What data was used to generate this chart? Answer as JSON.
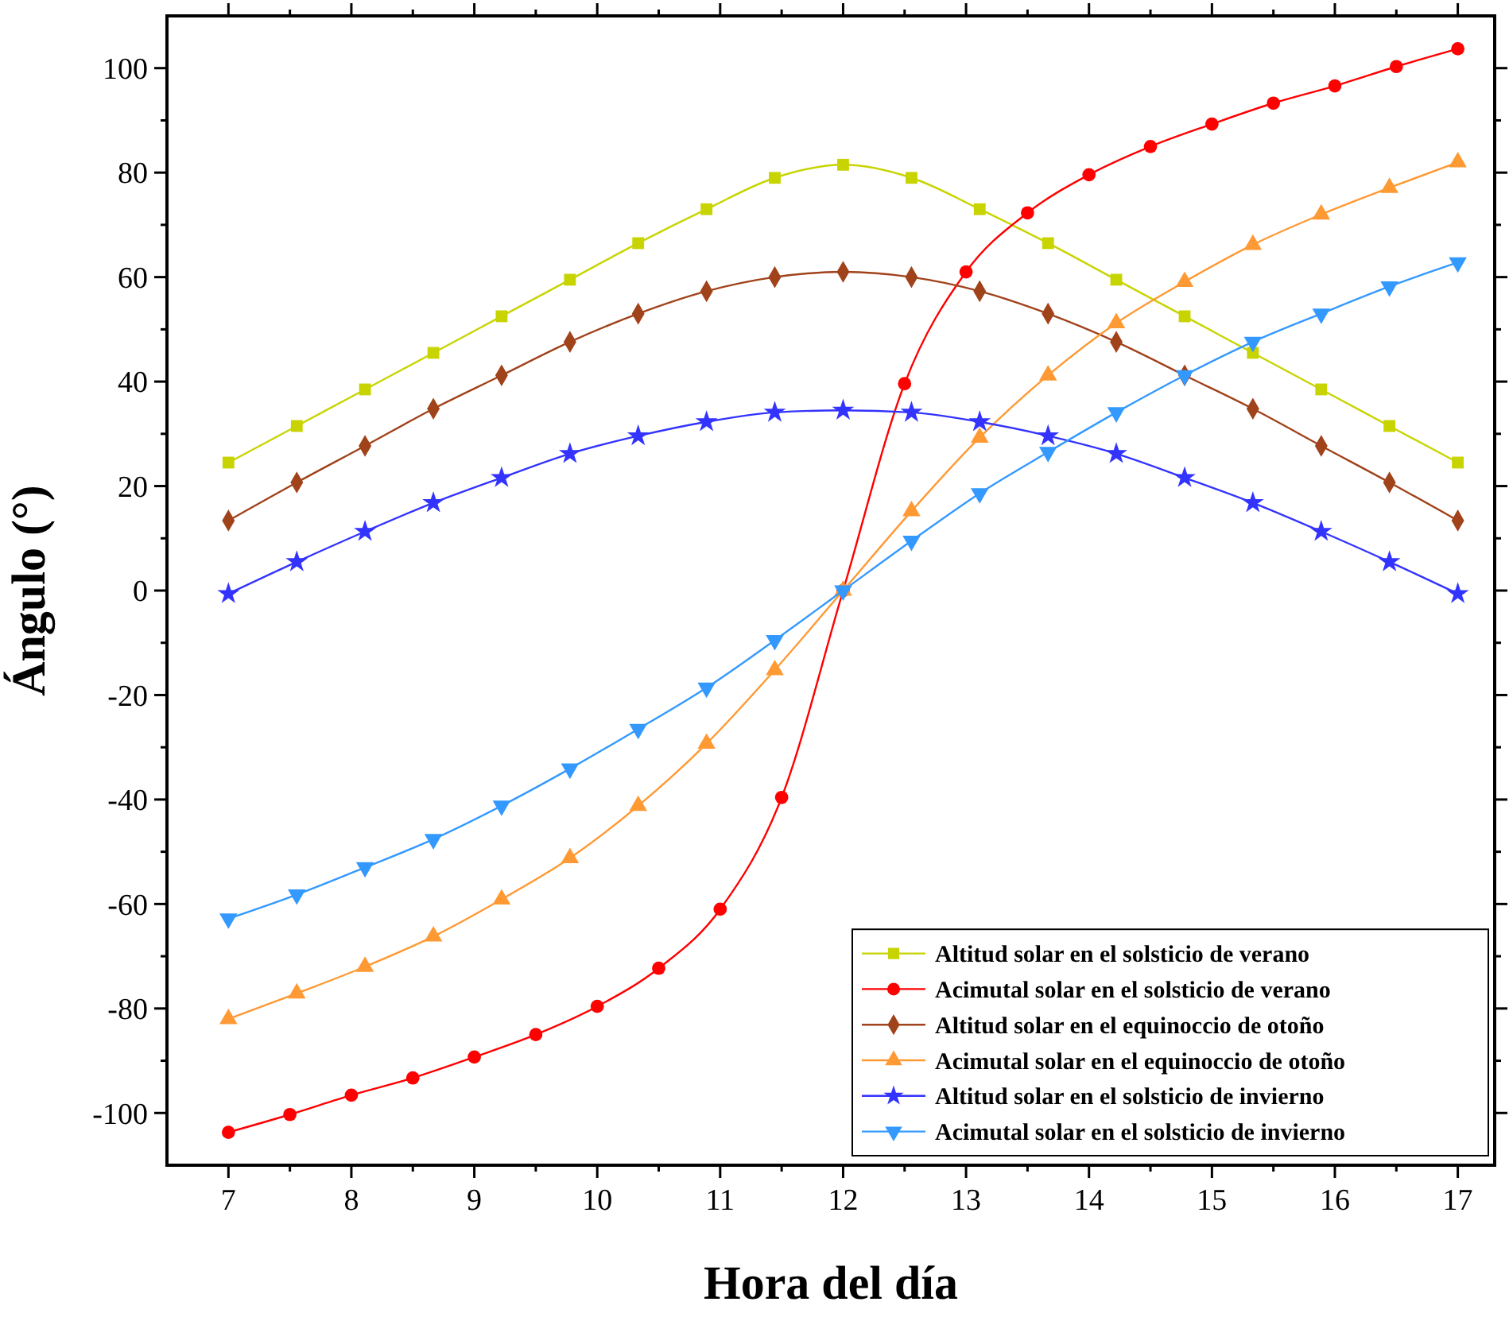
{
  "chart_data": {
    "type": "line",
    "xlabel": "Hora del día",
    "ylabel": "Ángulo (°)",
    "xlim": [
      6.5,
      17.3
    ],
    "ylim": [
      -110,
      110
    ],
    "xticks": [
      7,
      {
        "value": 7.5,
        "label": null
      },
      8,
      {
        "value": 8.5,
        "label": null
      },
      9,
      {
        "value": 9.5,
        "label": null
      },
      10,
      {
        "value": 10.5,
        "label": null
      },
      11,
      {
        "value": 11.5,
        "label": null
      },
      12,
      {
        "value": 12.5,
        "label": null
      },
      13,
      {
        "value": 13.5,
        "label": null
      },
      14,
      {
        "value": 14.5,
        "label": null
      },
      15,
      {
        "value": 15.5,
        "label": null
      },
      16,
      {
        "value": 16.5,
        "label": null
      },
      17
    ],
    "yticks": [
      -100,
      {
        "value": -90,
        "label": null
      },
      -80,
      {
        "value": -70,
        "label": null
      },
      -60,
      {
        "value": -50,
        "label": null
      },
      -40,
      {
        "value": -30,
        "label": null
      },
      -20,
      {
        "value": -10,
        "label": null
      },
      0,
      {
        "value": 10,
        "label": null
      },
      20,
      {
        "value": 30,
        "label": null
      },
      40,
      {
        "value": 50,
        "label": null
      },
      60,
      {
        "value": 70,
        "label": null
      },
      80,
      {
        "value": 90,
        "label": null
      },
      100
    ],
    "grid": false,
    "legend": "bottom right",
    "line_style": "solid",
    "series": [
      {
        "name": "Altitud solar en el solsticio de verano",
        "color": "#c8d400",
        "marker": "square",
        "x": [
          7,
          7.556,
          8.111,
          8.667,
          9.222,
          9.778,
          10.333,
          10.889,
          11.444,
          12,
          12.556,
          13.111,
          13.667,
          14.222,
          14.778,
          15.333,
          15.889,
          16.444,
          17
        ],
        "values": [
          24.5,
          31.5,
          38.5,
          45.5,
          52.5,
          59.5,
          66.5,
          73,
          79,
          81.5,
          79,
          73,
          66.5,
          59.5,
          52.5,
          45.5,
          38.5,
          31.5,
          24.5
        ]
      },
      {
        "name": "Acimutal solar en el solsticio de verano",
        "color": "#ff0000",
        "marker": "circle",
        "x": [
          7,
          7.5,
          8,
          8.5,
          9,
          9.5,
          10,
          10.5,
          11,
          11.5,
          12,
          12.5,
          13,
          13.5,
          14,
          14.5,
          15,
          15.5,
          16,
          16.5,
          17
        ],
        "values": [
          -103.7,
          -100.3,
          -96.6,
          -93.3,
          -89.3,
          -85,
          -79.6,
          -72.3,
          -61,
          -39.6,
          0,
          39.6,
          61,
          72.3,
          79.6,
          85,
          89.3,
          93.3,
          96.6,
          100.3,
          103.7
        ]
      },
      {
        "name": "Altitud solar en el equinoccio de otoño",
        "color": "#a0421a",
        "marker": "diamond",
        "x": [
          7,
          7.556,
          8.111,
          8.667,
          9.222,
          9.778,
          10.333,
          10.889,
          11.444,
          12,
          12.556,
          13.111,
          13.667,
          14.222,
          14.778,
          15.333,
          15.889,
          16.444,
          17
        ],
        "values": [
          13.4,
          20.7,
          27.7,
          34.8,
          41.2,
          47.6,
          53,
          57.3,
          60,
          61,
          60,
          57.3,
          53,
          47.6,
          41.2,
          34.8,
          27.7,
          20.7,
          13.4
        ]
      },
      {
        "name": "Acimutal solar en el equinoccio de otoño",
        "color": "#ff9933",
        "marker": "triangle",
        "x": [
          7,
          7.556,
          8.111,
          8.667,
          9.222,
          9.778,
          10.333,
          10.889,
          11.444,
          12,
          12.556,
          13.111,
          13.667,
          14.222,
          14.778,
          15.333,
          15.889,
          16.444,
          17
        ],
        "values": [
          -82,
          -77.1,
          -72,
          -66.2,
          -59.1,
          -51.2,
          -41.2,
          -29.3,
          -15.2,
          0,
          15.2,
          29.3,
          41.2,
          51.2,
          59.1,
          66.2,
          72,
          77.1,
          82
        ]
      },
      {
        "name": "Altitud solar en el solsticio de invierno",
        "color": "#3333ff",
        "marker": "star",
        "x": [
          7,
          7.556,
          8.111,
          8.667,
          9.222,
          9.778,
          10.333,
          10.889,
          11.444,
          12,
          12.556,
          13.111,
          13.667,
          14.222,
          14.778,
          15.333,
          15.889,
          16.444,
          17
        ],
        "values": [
          -0.6,
          5.5,
          11.3,
          16.8,
          21.6,
          26.2,
          29.6,
          32.3,
          34.1,
          34.5,
          34.1,
          32.3,
          29.6,
          26.2,
          21.6,
          16.8,
          11.3,
          5.5,
          -0.6
        ]
      },
      {
        "name": "Acimutal solar en el solsticio de invierno",
        "color": "#3399ff",
        "marker": "triangle-down",
        "x": [
          7,
          7.556,
          8.111,
          8.667,
          9.222,
          9.778,
          10.333,
          10.889,
          11.444,
          12,
          12.556,
          13.111,
          13.667,
          14.222,
          14.778,
          15.333,
          15.889,
          16.444,
          17
        ],
        "values": [
          -62.8,
          -58.2,
          -53,
          -47.6,
          -41.2,
          -34.1,
          -26.5,
          -18.6,
          -9.5,
          0,
          9.5,
          18.6,
          26.5,
          34.1,
          41.2,
          47.6,
          53,
          58.2,
          62.8
        ]
      }
    ]
  }
}
